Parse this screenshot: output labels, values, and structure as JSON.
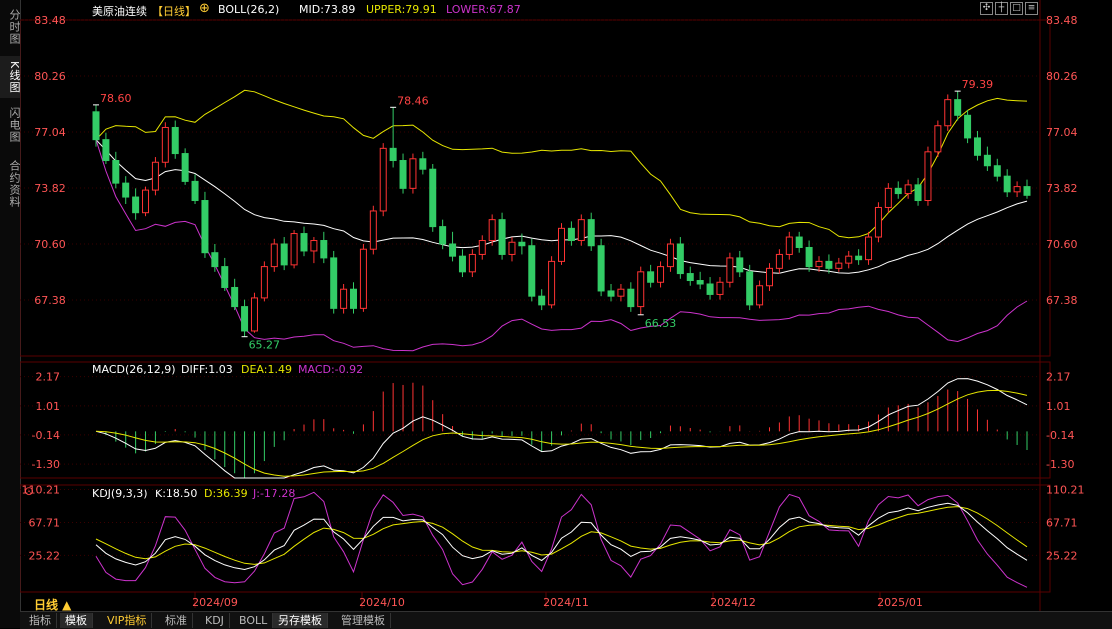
{
  "sidebar": {
    "tabs": [
      {
        "label": "分时图",
        "active": false
      },
      {
        "label": "K线图",
        "active": true
      },
      {
        "label": "闪电图",
        "active": false
      },
      {
        "label": "合约资料",
        "active": false
      }
    ]
  },
  "header": {
    "title": "美原油连续",
    "period": "【日线】",
    "boll_name": "BOLL(26,2)",
    "mid": "MID:73.89",
    "upper": "UPPER:79.91",
    "lower": "LOWER:67.87"
  },
  "toolbar": {
    "icons": [
      "move-icon",
      "crosshair-icon",
      "fullscreen-icon",
      "settings-icon"
    ]
  },
  "main_panel": {
    "y_labels": [
      "83.48",
      "80.26",
      "77.04",
      "73.82",
      "70.60",
      "67.38"
    ],
    "annotations": [
      {
        "text": "78.60",
        "color": "#ff4444"
      },
      {
        "text": "78.46",
        "color": "#ff4444"
      },
      {
        "text": "65.27",
        "color": "#33cc66"
      },
      {
        "text": "66.53",
        "color": "#33cc66"
      },
      {
        "text": "79.39",
        "color": "#ff4444"
      }
    ]
  },
  "macd": {
    "name": "MACD(26,12,9)",
    "diff": "DIFF:1.03",
    "dea": "DEA:1.49",
    "macd": "MACD:-0.92",
    "y_labels": [
      "2.17",
      "1.01",
      "-0.14",
      "-1.30"
    ]
  },
  "kdj": {
    "name": "KDJ(9,3,3)",
    "k": "K:18.50",
    "d": "D:36.39",
    "j": "J:-17.28",
    "y_labels": [
      "110.21",
      "67.71",
      "25.22"
    ]
  },
  "x_labels": [
    "2024/09",
    "2024/10",
    "2024/11",
    "2024/12",
    "2025/01"
  ],
  "period_selector": "日线 ▲",
  "bottom_tabs": [
    {
      "label": "指标",
      "active": false
    },
    {
      "label": "模板",
      "active": true
    },
    {
      "label": "VIP指标",
      "active": false
    },
    {
      "label": "标准",
      "active": false
    },
    {
      "label": "KDJ",
      "active": false
    },
    {
      "label": "BOLL",
      "active": false
    },
    {
      "label": "另存模板",
      "active": true
    },
    {
      "label": "管理模板",
      "active": false
    }
  ],
  "colors": {
    "up": "#ff3333",
    "down": "#33cc66",
    "mid_line": "#ffffff",
    "upper_line": "#e6e600",
    "lower_line": "#cc33cc",
    "axis_label": "#ff5555",
    "grid": "#3a0000"
  },
  "chart_data": {
    "type": "candlestick",
    "y_axis_ticks": [
      83.48,
      80.26,
      77.04,
      73.82,
      70.6,
      67.38
    ],
    "x_labels": [
      "2024/09",
      "2024/10",
      "2024/11",
      "2024/12",
      "2025/01"
    ],
    "ohlc": [
      [
        78.2,
        78.6,
        76.2,
        76.6
      ],
      [
        76.6,
        77.0,
        75.2,
        75.4
      ],
      [
        75.4,
        75.9,
        73.8,
        74.1
      ],
      [
        74.1,
        74.5,
        72.9,
        73.3
      ],
      [
        73.3,
        73.8,
        72.0,
        72.4
      ],
      [
        72.4,
        73.9,
        72.2,
        73.7
      ],
      [
        73.7,
        75.6,
        73.4,
        75.3
      ],
      [
        75.3,
        77.6,
        75.0,
        77.3
      ],
      [
        77.3,
        77.7,
        75.5,
        75.8
      ],
      [
        75.8,
        76.1,
        74.0,
        74.2
      ],
      [
        74.2,
        74.6,
        72.9,
        73.1
      ],
      [
        73.1,
        73.6,
        69.8,
        70.1
      ],
      [
        70.1,
        70.6,
        69.0,
        69.3
      ],
      [
        69.3,
        69.8,
        67.9,
        68.1
      ],
      [
        68.1,
        68.6,
        66.8,
        67.0
      ],
      [
        67.0,
        67.4,
        65.27,
        65.6
      ],
      [
        65.6,
        67.8,
        65.5,
        67.5
      ],
      [
        67.5,
        69.6,
        67.3,
        69.3
      ],
      [
        69.3,
        70.9,
        69.0,
        70.6
      ],
      [
        70.6,
        71.0,
        69.1,
        69.4
      ],
      [
        69.4,
        71.4,
        69.2,
        71.2
      ],
      [
        71.2,
        71.6,
        69.9,
        70.2
      ],
      [
        70.2,
        71.0,
        69.5,
        70.8
      ],
      [
        70.8,
        71.3,
        69.5,
        69.8
      ],
      [
        69.8,
        70.2,
        66.6,
        66.9
      ],
      [
        66.9,
        68.3,
        66.6,
        68.0
      ],
      [
        68.0,
        68.4,
        66.6,
        66.9
      ],
      [
        66.9,
        70.6,
        66.7,
        70.3
      ],
      [
        70.3,
        72.8,
        70.0,
        72.5
      ],
      [
        72.5,
        76.4,
        72.2,
        76.1
      ],
      [
        76.1,
        78.46,
        75.0,
        75.4
      ],
      [
        75.4,
        75.8,
        73.5,
        73.8
      ],
      [
        73.8,
        75.8,
        73.5,
        75.5
      ],
      [
        75.5,
        75.9,
        74.6,
        74.9
      ],
      [
        74.9,
        75.2,
        71.3,
        71.6
      ],
      [
        71.6,
        72.0,
        70.3,
        70.6
      ],
      [
        70.6,
        71.3,
        69.6,
        69.9
      ],
      [
        69.9,
        70.3,
        68.7,
        69.0
      ],
      [
        69.0,
        70.3,
        68.7,
        70.0
      ],
      [
        70.0,
        71.1,
        69.7,
        70.8
      ],
      [
        70.8,
        72.3,
        70.5,
        72.0
      ],
      [
        72.0,
        72.4,
        69.7,
        70.0
      ],
      [
        70.0,
        71.0,
        69.6,
        70.7
      ],
      [
        70.7,
        71.2,
        70.0,
        70.5
      ],
      [
        70.5,
        70.9,
        67.3,
        67.6
      ],
      [
        67.6,
        68.0,
        66.8,
        67.1
      ],
      [
        67.1,
        69.9,
        66.9,
        69.6
      ],
      [
        69.6,
        71.8,
        69.4,
        71.5
      ],
      [
        71.5,
        71.9,
        70.5,
        70.8
      ],
      [
        70.8,
        72.3,
        70.5,
        72.0
      ],
      [
        72.0,
        72.4,
        70.2,
        70.5
      ],
      [
        70.5,
        70.9,
        67.6,
        67.9
      ],
      [
        67.9,
        68.3,
        67.3,
        67.6
      ],
      [
        67.6,
        68.3,
        67.3,
        68.0
      ],
      [
        68.0,
        68.4,
        66.7,
        67.0
      ],
      [
        67.0,
        69.3,
        66.53,
        69.0
      ],
      [
        69.0,
        69.4,
        68.1,
        68.4
      ],
      [
        68.4,
        69.6,
        68.1,
        69.3
      ],
      [
        69.3,
        70.9,
        69.0,
        70.6
      ],
      [
        70.6,
        71.0,
        68.6,
        68.9
      ],
      [
        68.9,
        69.3,
        68.2,
        68.5
      ],
      [
        68.5,
        69.0,
        68.0,
        68.3
      ],
      [
        68.3,
        68.7,
        67.4,
        67.7
      ],
      [
        67.7,
        68.7,
        67.4,
        68.4
      ],
      [
        68.4,
        70.1,
        68.1,
        69.8
      ],
      [
        69.8,
        70.2,
        68.7,
        69.0
      ],
      [
        69.0,
        69.4,
        66.8,
        67.1
      ],
      [
        67.1,
        68.5,
        66.9,
        68.2
      ],
      [
        68.2,
        69.5,
        67.9,
        69.2
      ],
      [
        69.2,
        70.3,
        68.9,
        70.0
      ],
      [
        70.0,
        71.3,
        69.7,
        71.0
      ],
      [
        71.0,
        71.3,
        70.1,
        70.4
      ],
      [
        70.4,
        70.8,
        69.0,
        69.3
      ],
      [
        69.3,
        69.9,
        69.0,
        69.6
      ],
      [
        69.6,
        70.0,
        68.9,
        69.2
      ],
      [
        69.2,
        69.8,
        69.0,
        69.5
      ],
      [
        69.5,
        70.2,
        69.2,
        69.9
      ],
      [
        69.9,
        70.3,
        69.4,
        69.7
      ],
      [
        69.7,
        71.3,
        69.4,
        71.0
      ],
      [
        71.0,
        73.0,
        70.7,
        72.7
      ],
      [
        72.7,
        74.1,
        72.4,
        73.8
      ],
      [
        73.8,
        74.2,
        73.2,
        73.5
      ],
      [
        73.5,
        74.3,
        73.2,
        74.0
      ],
      [
        74.0,
        74.4,
        72.8,
        73.1
      ],
      [
        73.1,
        76.2,
        72.8,
        75.9
      ],
      [
        75.9,
        77.7,
        75.6,
        77.4
      ],
      [
        77.4,
        79.2,
        77.1,
        78.9
      ],
      [
        78.9,
        79.39,
        77.7,
        78.0
      ],
      [
        78.0,
        78.3,
        76.4,
        76.7
      ],
      [
        76.7,
        77.1,
        75.4,
        75.7
      ],
      [
        75.7,
        76.2,
        74.8,
        75.1
      ],
      [
        75.1,
        75.5,
        74.2,
        74.5
      ],
      [
        74.5,
        74.9,
        73.3,
        73.6
      ],
      [
        73.6,
        74.2,
        73.3,
        73.9
      ],
      [
        73.9,
        74.3,
        73.2,
        73.4
      ]
    ]
  }
}
